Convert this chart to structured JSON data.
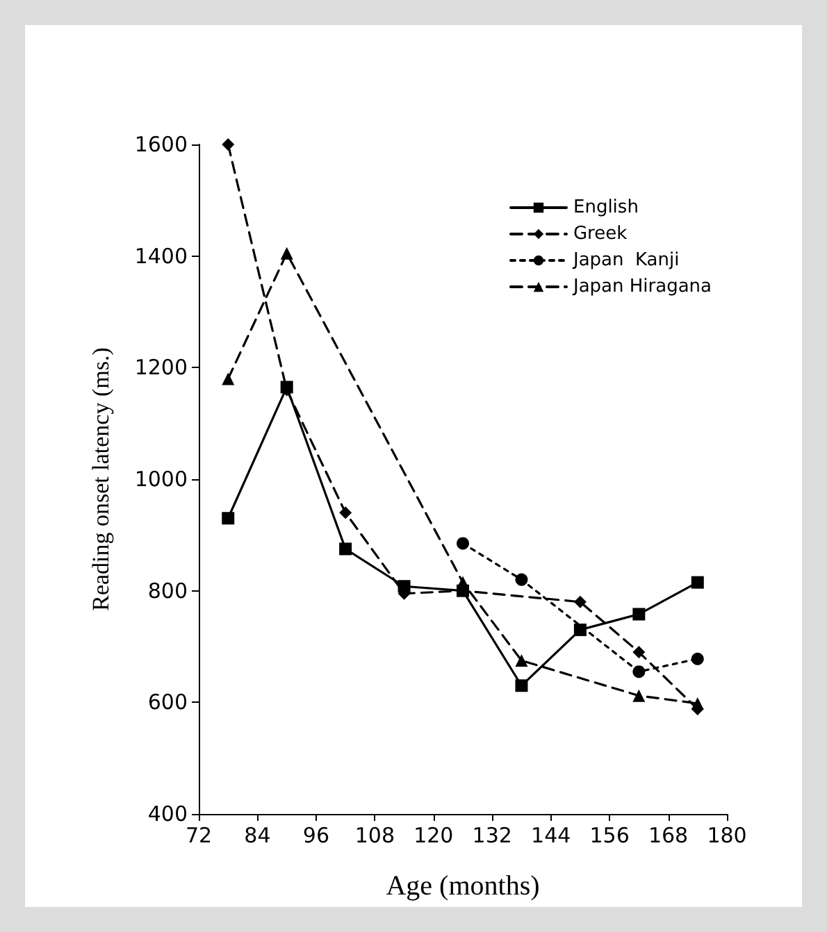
{
  "chart_data": {
    "type": "line",
    "xlabel": "Age (months)",
    "ylabel": "Reading onset latency (ms.)",
    "x": [
      78,
      90,
      102,
      114,
      126,
      138,
      150,
      162,
      174
    ],
    "xlim": [
      72,
      180
    ],
    "xticks": [
      72,
      84,
      96,
      108,
      120,
      132,
      144,
      156,
      168,
      180
    ],
    "ylim": [
      400,
      1600
    ],
    "yticks": [
      400,
      600,
      800,
      1000,
      1200,
      1400,
      1600
    ],
    "grid": false,
    "legend": "top right",
    "series": [
      {
        "name": "English",
        "color": "#000000",
        "marker": "square",
        "line_style": "solid",
        "values": [
          930,
          1165,
          875,
          808,
          800,
          630,
          730,
          758,
          815
        ]
      },
      {
        "name": "Greek",
        "color": "#000000",
        "marker": "diamond",
        "line_style": "dashed",
        "values": [
          1600,
          1160,
          940,
          795,
          800,
          null,
          780,
          690,
          588
        ]
      },
      {
        "name": "Japan  Kanji",
        "color": "#000000",
        "marker": "circle",
        "line_style": "dotted",
        "values": [
          null,
          null,
          null,
          null,
          885,
          820,
          null,
          655,
          678
        ]
      },
      {
        "name": "Japan Hiragana",
        "color": "#000000",
        "marker": "triangle",
        "line_style": "dashed",
        "values": [
          1180,
          1405,
          null,
          null,
          815,
          675,
          null,
          612,
          598
        ]
      }
    ]
  }
}
